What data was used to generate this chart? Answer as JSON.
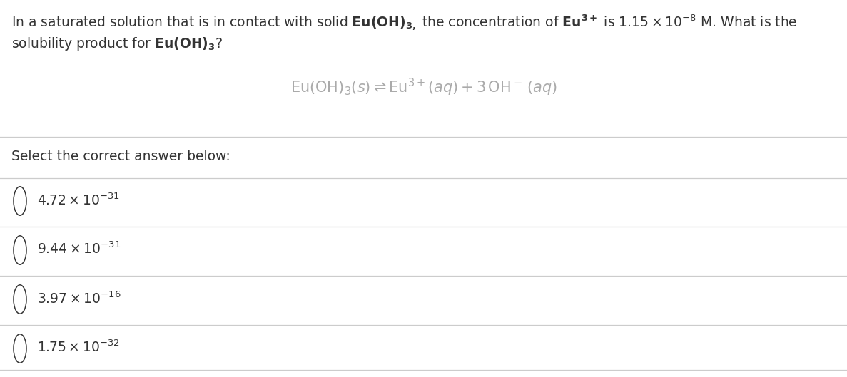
{
  "background_color": "#ffffff",
  "text_color": "#333333",
  "gray_color": "#aaaaaa",
  "line_color": "#cccccc",
  "font_size_body": 13.5,
  "font_size_eq": 15,
  "font_size_options": 13.5,
  "title_line1": "In a saturated solution that is in contact with solid $\\mathbf{Eu(OH)_{3,}}$ the concentration of $\\mathbf{Eu^{3+}}$ is $1.15 \\times 10^{-8}$ M. What is the",
  "title_line2": "solubility product for $\\mathbf{Eu(OH)_{3}}$?",
  "equation": "$\\mathrm{Eu(OH)_3}(s) \\rightleftharpoons \\mathrm{Eu^{3+}}(aq) + 3\\,\\mathrm{OH^-}\\,(aq)$",
  "select_text": "Select the correct answer below:",
  "options_latex": [
    "$4.72 \\times 10^{-31}$",
    "$9.44 \\times 10^{-31}$",
    "$3.97 \\times 10^{-16}$",
    "$1.75 \\times 10^{-32}$"
  ],
  "figsize": [
    11.87,
    5.29
  ],
  "dpi": 100
}
